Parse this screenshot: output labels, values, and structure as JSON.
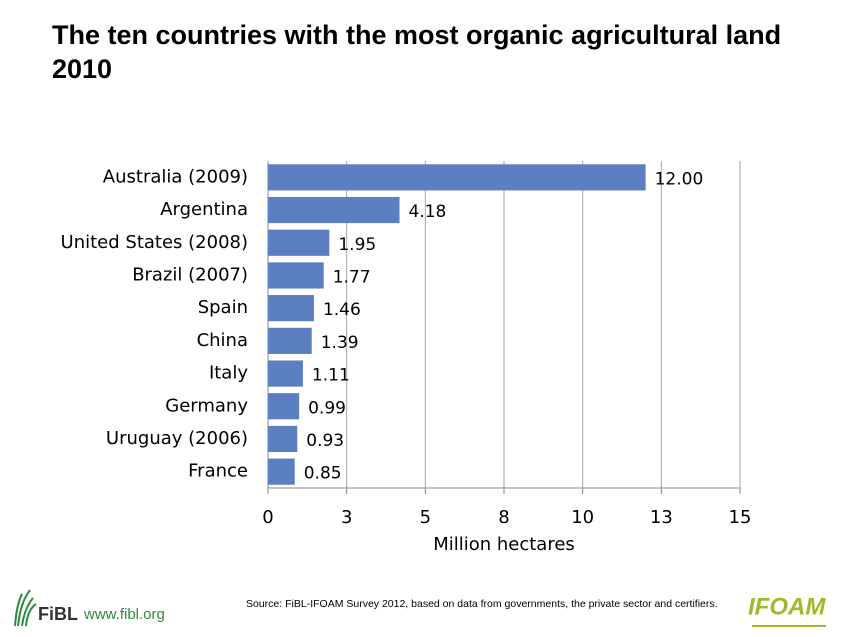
{
  "chart_data": {
    "type": "bar",
    "orientation": "horizontal",
    "title": "The ten countries with the most organic agricultural land 2010",
    "categories": [
      "Australia (2009)",
      "Argentina",
      "United States (2008)",
      "Brazil (2007)",
      "Spain",
      "China",
      "Italy",
      "Germany",
      "Uruguay (2006)",
      "France"
    ],
    "values": [
      12.0,
      4.18,
      1.95,
      1.77,
      1.46,
      1.39,
      1.11,
      0.99,
      0.93,
      0.85
    ],
    "value_labels": [
      "12.00",
      "4.18",
      "1.95",
      "1.77",
      "1.46",
      "1.39",
      "1.11",
      "0.99",
      "0.93",
      "0.85"
    ],
    "color": "#5b7fc1",
    "xlabel": "Million hectares",
    "xlim": [
      0,
      15
    ],
    "xticks": [
      0,
      {
        "value": 2.5,
        "label": "3"
      },
      5,
      {
        "value": 7.5,
        "label": "8"
      },
      10,
      {
        "value": 12.5,
        "label": "13"
      },
      15
    ],
    "grid": true
  },
  "footer": {
    "source": "Source: FiBL-IFOAM Survey 2012, based on data from governments, the private sector and certifiers.",
    "left_logo": "FiBL",
    "left_url": "www.fibl.org",
    "right_logo": "IFOAM"
  }
}
